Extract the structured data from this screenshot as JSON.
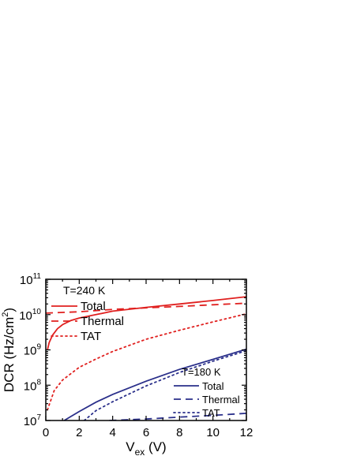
{
  "chart_data": {
    "type": "line",
    "xlabel_main": "V",
    "xlabel_sub": "ex",
    "xlabel_unit": " (V)",
    "ylabel_prefix": "DCR (Hz/cm",
    "ylabel_sup": "2",
    "ylabel_suffix": ")",
    "xlim": [
      0,
      12
    ],
    "ylim_log10": [
      7,
      11
    ],
    "y_scale": "log",
    "grid": false,
    "x_ticks": [
      "0",
      "2",
      "4",
      "6",
      "8",
      "10",
      "12"
    ],
    "y_tick_base": "10",
    "y_tick_exponents": [
      "7",
      "8",
      "9",
      "10",
      "11"
    ],
    "groups": [
      {
        "label": "T=240 K",
        "color": "#e0201f",
        "legend": [
          "Total",
          "Thermal",
          "TAT"
        ]
      },
      {
        "label": "T=180 K",
        "color": "#2a2f8a",
        "legend": [
          "Total",
          "Thermal",
          "TAT"
        ]
      }
    ],
    "series": [
      {
        "group": 0,
        "style": "solid",
        "x": [
          0.1,
          0.2,
          0.4,
          0.7,
          1.0,
          1.5,
          2.0,
          3.0,
          4.0,
          6.0,
          8.0,
          10.0,
          12.0
        ],
        "y": [
          1000000000.0,
          1600000000.0,
          2600000000.0,
          4000000000.0,
          5200000000.0,
          6800000000.0,
          8000000000.0,
          10000000000.0,
          12500000000.0,
          16000000000.0,
          20000000000.0,
          25000000000.0,
          32000000000.0
        ]
      },
      {
        "group": 0,
        "style": "dashed",
        "x": [
          0,
          1,
          2,
          3,
          4,
          6,
          8,
          10,
          12
        ],
        "y": [
          11000000000.0,
          11500000000.0,
          12000000000.0,
          13000000000.0,
          14000000000.0,
          15500000000.0,
          17000000000.0,
          19000000000.0,
          21000000000.0
        ]
      },
      {
        "group": 0,
        "style": "dotted",
        "x": [
          0.1,
          0.5,
          1,
          2,
          3,
          4,
          6,
          8,
          10,
          12
        ],
        "y": [
          20000000.0,
          70000000.0,
          140000000.0,
          320000000.0,
          550000000.0,
          900000000.0,
          2000000000.0,
          3600000000.0,
          6200000000.0,
          10500000000.0
        ]
      },
      {
        "group": 1,
        "style": "solid",
        "x": [
          1.1,
          1.5,
          2,
          3,
          4,
          6,
          8,
          10,
          12
        ],
        "y": [
          10000000.0,
          13000000.0,
          18000000.0,
          33000000.0,
          55000000.0,
          130000000.0,
          280000000.0,
          540000000.0,
          1050000000.0
        ]
      },
      {
        "group": 1,
        "style": "dashed",
        "x": [
          3.8,
          6,
          8,
          10,
          12
        ],
        "y": [
          10000000.0,
          11000000.0,
          12500000.0,
          14000000.0,
          16000000.0
        ]
      },
      {
        "group": 1,
        "style": "dotted",
        "x": [
          2.3,
          3,
          4,
          6,
          8,
          10,
          12
        ],
        "y": [
          10000000.0,
          19000000.0,
          34000000.0,
          95000000.0,
          230000000.0,
          480000000.0,
          950000000.0
        ]
      }
    ]
  }
}
